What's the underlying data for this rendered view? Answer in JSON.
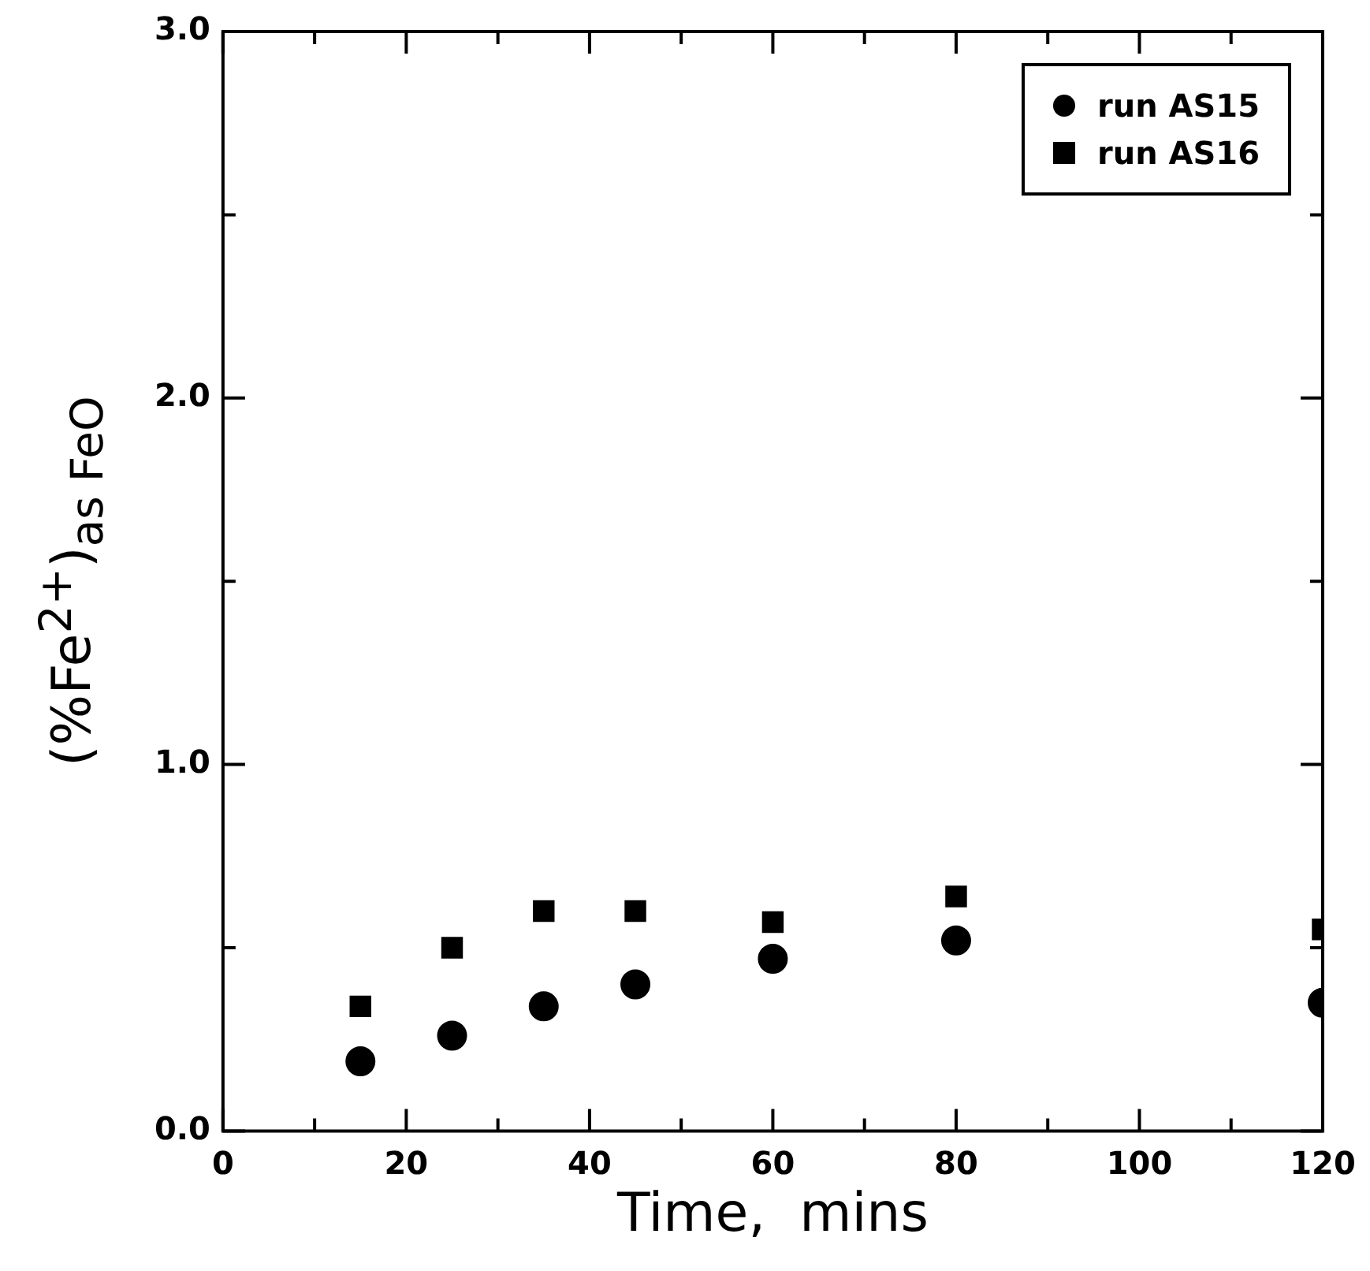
{
  "chart_data": {
    "type": "scatter",
    "xlabel": "Time,  mins",
    "ylabel": "(%Fe$^{2+}$)$_{as FeO}$",
    "x": [
      15,
      25,
      35,
      45,
      60,
      80,
      120
    ],
    "series": [
      {
        "name": "run AS15",
        "color": "#000000",
        "marker": "circle",
        "values": [
          0.19,
          0.26,
          0.34,
          0.4,
          0.47,
          0.52,
          0.35
        ]
      },
      {
        "name": "run AS16",
        "color": "#000000",
        "marker": "square",
        "values": [
          0.34,
          0.5,
          0.6,
          0.6,
          0.57,
          0.64,
          0.55
        ]
      }
    ],
    "xlim": [
      0,
      120
    ],
    "xticks": [
      0,
      {
        "value": 10,
        "label": null
      },
      20,
      {
        "value": 30,
        "label": null
      },
      40,
      {
        "value": 50,
        "label": null
      },
      60,
      {
        "value": 70,
        "label": null
      },
      80,
      {
        "value": 90,
        "label": null
      },
      100,
      {
        "value": 110,
        "label": null
      },
      120
    ],
    "ylim": [
      0,
      3.0
    ],
    "yticks": [
      {
        "value": 0,
        "label": "0.0"
      },
      {
        "value": 0.5,
        "label": null
      },
      {
        "value": 1.0,
        "label": "1.0"
      },
      {
        "value": 1.5,
        "label": null
      },
      {
        "value": 2.0,
        "label": "2.0"
      },
      {
        "value": 2.5,
        "label": null
      },
      {
        "value": 3.0,
        "label": "3.0"
      }
    ],
    "grid": false,
    "legend": "top right"
  }
}
